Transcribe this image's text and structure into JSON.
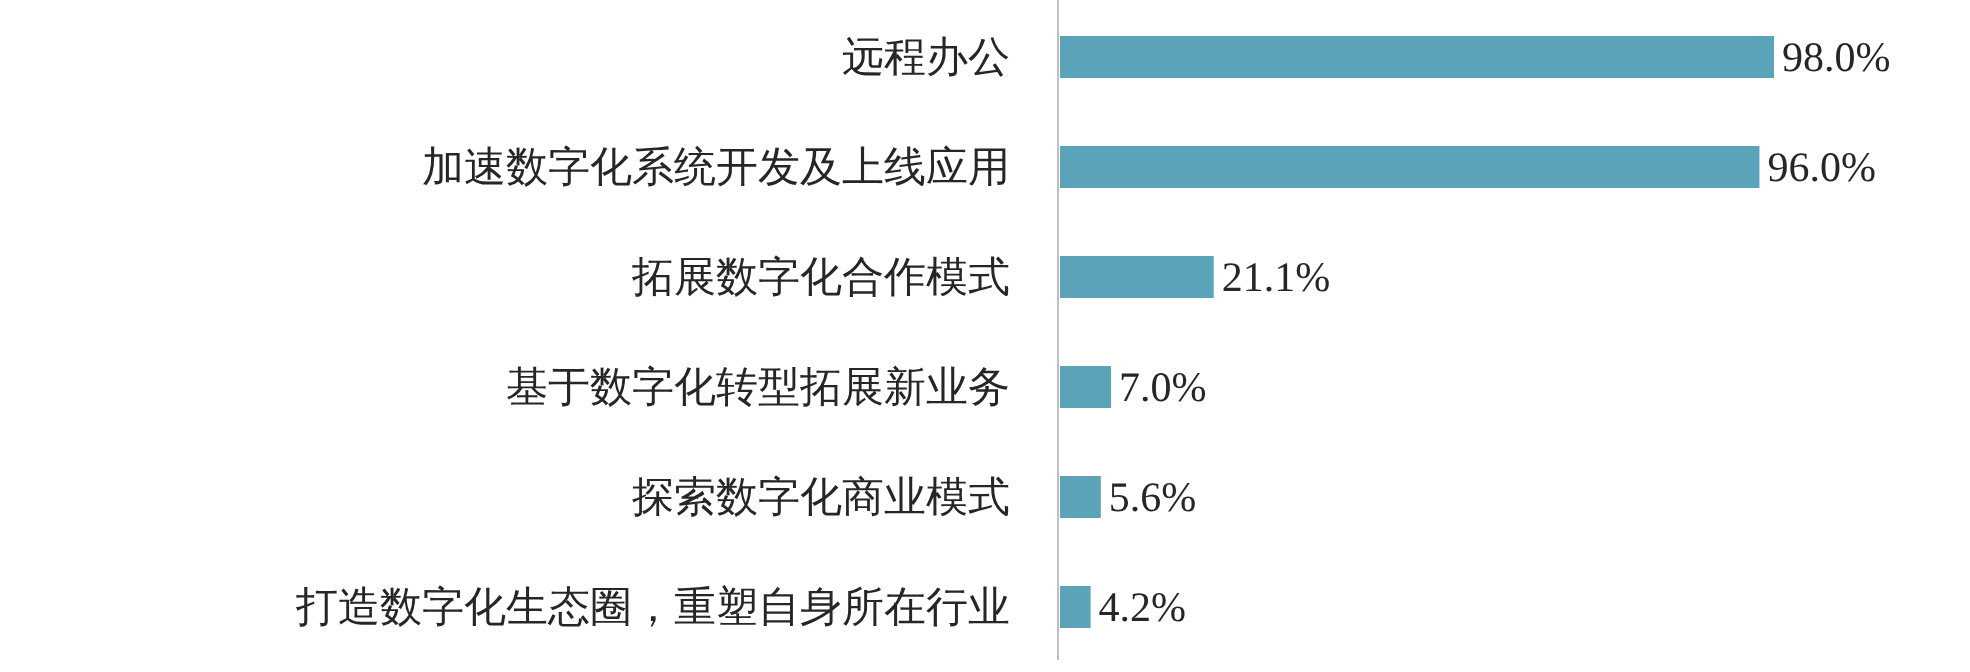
{
  "chart_data": {
    "type": "bar",
    "orientation": "horizontal",
    "color": "#5ba3b8",
    "categories": [
      "远程办公",
      "加速数字化系统开发及上线应用",
      "拓展数字化合作模式",
      "基于数字化转型拓展新业务",
      "探索数字化商业模式",
      "打造数字化生态圈，重塑自身所在行业"
    ],
    "values": [
      98.0,
      96.0,
      21.1,
      7.0,
      5.6,
      4.2
    ],
    "value_labels": [
      "98.0%",
      "96.0%",
      "21.1%",
      "7.0%",
      "5.6%",
      "4.2%"
    ]
  }
}
